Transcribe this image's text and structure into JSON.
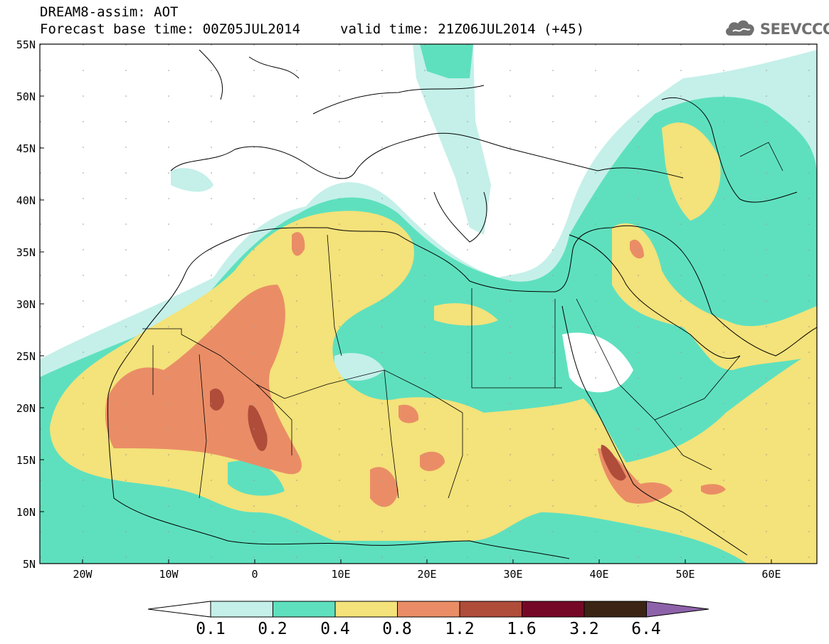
{
  "title": {
    "line1": "DREAM8-assim: AOT",
    "line2": "Forecast base time: 00Z05JUL2014",
    "valid": "valid time: 21Z06JUL2014 (+45)"
  },
  "logo": {
    "text": "SEEVCCC",
    "icon": "cloud-icon"
  },
  "map": {
    "lat_labels": [
      "55N",
      "50N",
      "45N",
      "40N",
      "35N",
      "30N",
      "25N",
      "20N",
      "15N",
      "10N",
      "5N"
    ],
    "lon_labels": [
      "20W",
      "10W",
      "0",
      "10E",
      "20E",
      "30E",
      "40E",
      "50E",
      "60E"
    ]
  },
  "colorbar": {
    "labels": [
      "0.1",
      "0.2",
      "0.4",
      "0.8",
      "1.2",
      "1.6",
      "3.2",
      "6.4"
    ],
    "colors": [
      "#c4f0e9",
      "#5ee0be",
      "#f4e27a",
      "#ea8d66",
      "#b04c3a",
      "#760827",
      "#3c2414",
      "#8e62aa"
    ]
  }
}
